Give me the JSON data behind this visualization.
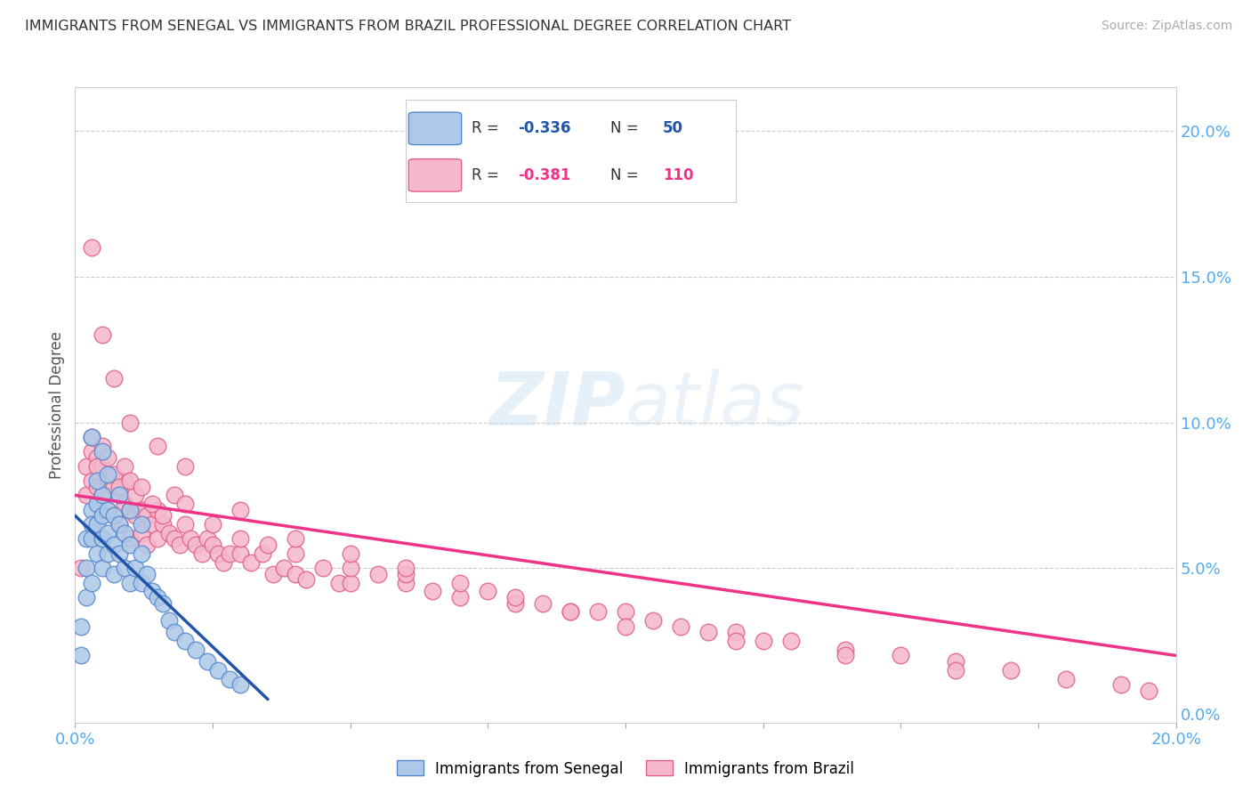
{
  "title": "IMMIGRANTS FROM SENEGAL VS IMMIGRANTS FROM BRAZIL PROFESSIONAL DEGREE CORRELATION CHART",
  "source": "Source: ZipAtlas.com",
  "ylabel": "Professional Degree",
  "senegal_color": "#adc8e8",
  "senegal_edge": "#5588cc",
  "brazil_color": "#f5b8cc",
  "brazil_edge": "#e06088",
  "senegal_line_color": "#2255aa",
  "brazil_line_color": "#ee3388",
  "xmin": 0.0,
  "xmax": 0.2,
  "ymin": -0.003,
  "ymax": 0.215,
  "senegal_scatter_x": [
    0.001,
    0.001,
    0.002,
    0.002,
    0.002,
    0.003,
    0.003,
    0.003,
    0.003,
    0.004,
    0.004,
    0.004,
    0.005,
    0.005,
    0.005,
    0.005,
    0.006,
    0.006,
    0.006,
    0.007,
    0.007,
    0.007,
    0.008,
    0.008,
    0.009,
    0.009,
    0.01,
    0.01,
    0.011,
    0.012,
    0.012,
    0.013,
    0.014,
    0.015,
    0.016,
    0.017,
    0.018,
    0.02,
    0.022,
    0.024,
    0.026,
    0.028,
    0.03,
    0.003,
    0.004,
    0.005,
    0.006,
    0.008,
    0.01,
    0.012
  ],
  "senegal_scatter_y": [
    0.03,
    0.02,
    0.06,
    0.05,
    0.04,
    0.07,
    0.065,
    0.06,
    0.045,
    0.072,
    0.065,
    0.055,
    0.075,
    0.068,
    0.06,
    0.05,
    0.07,
    0.062,
    0.055,
    0.068,
    0.058,
    0.048,
    0.065,
    0.055,
    0.062,
    0.05,
    0.058,
    0.045,
    0.05,
    0.055,
    0.045,
    0.048,
    0.042,
    0.04,
    0.038,
    0.032,
    0.028,
    0.025,
    0.022,
    0.018,
    0.015,
    0.012,
    0.01,
    0.095,
    0.08,
    0.09,
    0.082,
    0.075,
    0.07,
    0.065
  ],
  "brazil_scatter_x": [
    0.001,
    0.002,
    0.002,
    0.003,
    0.003,
    0.004,
    0.004,
    0.005,
    0.005,
    0.006,
    0.006,
    0.007,
    0.007,
    0.008,
    0.008,
    0.009,
    0.009,
    0.01,
    0.01,
    0.011,
    0.011,
    0.012,
    0.012,
    0.013,
    0.013,
    0.014,
    0.015,
    0.015,
    0.016,
    0.017,
    0.018,
    0.019,
    0.02,
    0.021,
    0.022,
    0.023,
    0.024,
    0.025,
    0.026,
    0.027,
    0.028,
    0.03,
    0.032,
    0.034,
    0.036,
    0.038,
    0.04,
    0.042,
    0.045,
    0.048,
    0.05,
    0.055,
    0.06,
    0.065,
    0.07,
    0.075,
    0.08,
    0.085,
    0.09,
    0.095,
    0.1,
    0.105,
    0.11,
    0.115,
    0.12,
    0.125,
    0.13,
    0.14,
    0.15,
    0.16,
    0.17,
    0.18,
    0.19,
    0.195,
    0.003,
    0.004,
    0.005,
    0.006,
    0.007,
    0.008,
    0.009,
    0.01,
    0.012,
    0.014,
    0.016,
    0.018,
    0.02,
    0.025,
    0.03,
    0.035,
    0.04,
    0.05,
    0.06,
    0.07,
    0.08,
    0.09,
    0.1,
    0.12,
    0.14,
    0.16,
    0.003,
    0.005,
    0.007,
    0.01,
    0.015,
    0.02,
    0.03,
    0.04,
    0.05,
    0.06
  ],
  "brazil_scatter_y": [
    0.05,
    0.085,
    0.075,
    0.09,
    0.08,
    0.088,
    0.078,
    0.085,
    0.075,
    0.08,
    0.07,
    0.078,
    0.068,
    0.075,
    0.065,
    0.072,
    0.08,
    0.07,
    0.06,
    0.068,
    0.075,
    0.07,
    0.062,
    0.068,
    0.058,
    0.065,
    0.07,
    0.06,
    0.065,
    0.062,
    0.06,
    0.058,
    0.065,
    0.06,
    0.058,
    0.055,
    0.06,
    0.058,
    0.055,
    0.052,
    0.055,
    0.055,
    0.052,
    0.055,
    0.048,
    0.05,
    0.048,
    0.046,
    0.05,
    0.045,
    0.045,
    0.048,
    0.045,
    0.042,
    0.04,
    0.042,
    0.038,
    0.038,
    0.035,
    0.035,
    0.035,
    0.032,
    0.03,
    0.028,
    0.028,
    0.025,
    0.025,
    0.022,
    0.02,
    0.018,
    0.015,
    0.012,
    0.01,
    0.008,
    0.095,
    0.085,
    0.092,
    0.088,
    0.082,
    0.078,
    0.085,
    0.08,
    0.078,
    0.072,
    0.068,
    0.075,
    0.072,
    0.065,
    0.06,
    0.058,
    0.055,
    0.05,
    0.048,
    0.045,
    0.04,
    0.035,
    0.03,
    0.025,
    0.02,
    0.015,
    0.16,
    0.13,
    0.115,
    0.1,
    0.092,
    0.085,
    0.07,
    0.06,
    0.055,
    0.05
  ],
  "senegal_line_x": [
    0.0,
    0.035
  ],
  "senegal_line_y": [
    0.068,
    0.005
  ],
  "brazil_line_x": [
    0.0,
    0.2
  ],
  "brazil_line_y": [
    0.075,
    0.02
  ]
}
